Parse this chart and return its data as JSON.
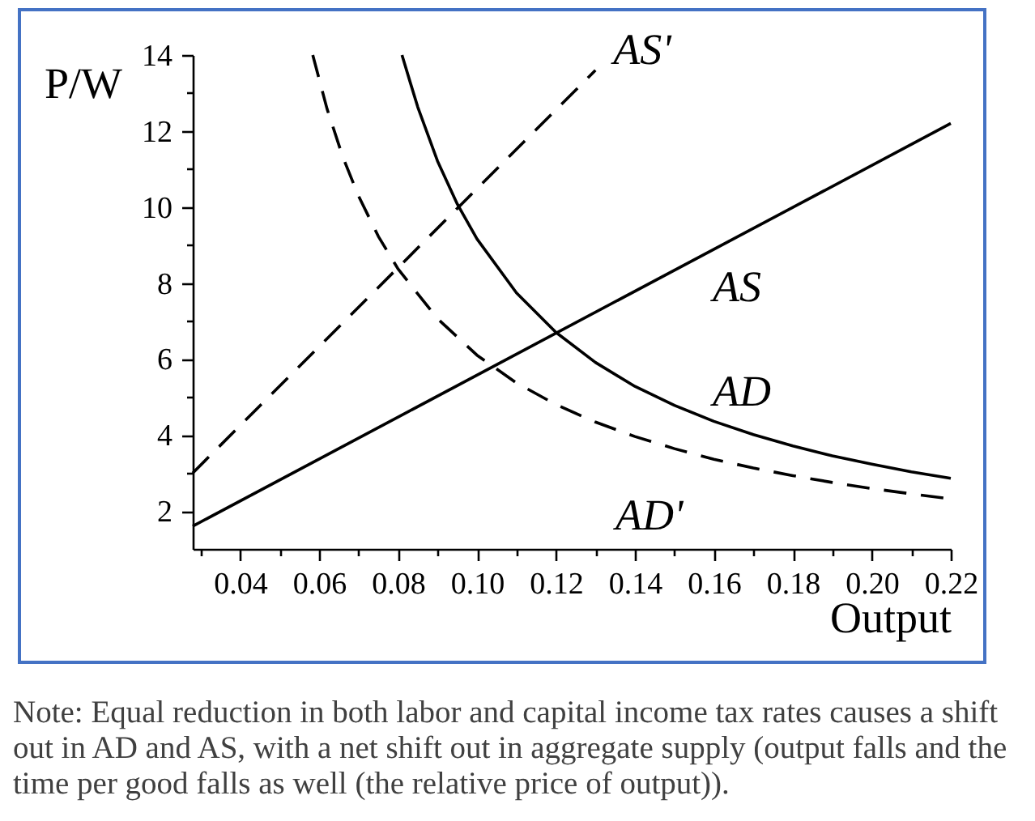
{
  "chart_data": {
    "type": "line",
    "xlabel": "Output",
    "ylabel": "P/W",
    "annotations": [
      "Note: Equal reduction in both labor and capital income tax rates causes a shift out in AD and AS, with a net shift out in aggregate supply (output falls and the time per good falls as well (the relative price of output))."
    ],
    "xlim": [
      0.028,
      0.22
    ],
    "ylim": [
      1,
      14
    ],
    "xticks": [
      {
        "value": 0.03,
        "label": null
      },
      0.04,
      {
        "value": 0.05,
        "label": null
      },
      0.06,
      {
        "value": 0.07,
        "label": null
      },
      0.08,
      {
        "value": 0.09,
        "label": null
      },
      {
        "value": 0.1,
        "label": "0.10"
      },
      {
        "value": 0.11,
        "label": null
      },
      0.12,
      {
        "value": 0.13,
        "label": null
      },
      0.14,
      {
        "value": 0.15,
        "label": null
      },
      0.16,
      {
        "value": 0.17,
        "label": null
      },
      0.18,
      {
        "value": 0.19,
        "label": null
      },
      {
        "value": 0.2,
        "label": "0.20"
      },
      {
        "value": 0.21,
        "label": null
      },
      0.22
    ],
    "yticks": [
      2,
      {
        "value": 3,
        "label": null
      },
      4,
      {
        "value": 5,
        "label": null
      },
      6,
      {
        "value": 7,
        "label": null
      },
      8,
      {
        "value": 9,
        "label": null
      },
      10,
      {
        "value": 11,
        "label": null
      },
      12,
      {
        "value": 13,
        "label": null
      },
      14
    ],
    "series": [
      {
        "name": "AS",
        "color": "#000000",
        "line_style": "solid",
        "x": [
          0.028,
          0.22
        ],
        "values": [
          1.6,
          12.2
        ]
      },
      {
        "name": "AS'",
        "color": "#000000",
        "line_style": "dashed",
        "x": [
          0.028,
          0.13
        ],
        "values": [
          3.0,
          13.6
        ]
      },
      {
        "name": "AD",
        "color": "#000000",
        "line_style": "solid",
        "x": [
          0.081,
          0.083,
          0.085,
          0.09,
          0.095,
          0.1,
          0.11,
          0.12,
          0.13,
          0.14,
          0.15,
          0.16,
          0.17,
          0.18,
          0.19,
          0.2,
          0.21,
          0.22
        ],
        "values": [
          14.0,
          13.31,
          12.63,
          11.21,
          10.08,
          9.16,
          7.74,
          6.7,
          5.91,
          5.28,
          4.78,
          4.36,
          4.01,
          3.71,
          3.45,
          3.23,
          3.03,
          2.86
        ]
      },
      {
        "name": "AD'",
        "color": "#000000",
        "line_style": "dashed",
        "x": [
          0.0584,
          0.062,
          0.066,
          0.07,
          0.075,
          0.08,
          0.09,
          0.1,
          0.11,
          0.12,
          0.13,
          0.14,
          0.15,
          0.16,
          0.17,
          0.18,
          0.19,
          0.2,
          0.21,
          0.22
        ],
        "values": [
          14.0,
          12.59,
          11.32,
          10.29,
          9.23,
          8.37,
          7.06,
          6.1,
          5.37,
          4.8,
          4.34,
          3.96,
          3.64,
          3.36,
          3.13,
          2.93,
          2.75,
          2.59,
          2.45,
          2.32
        ]
      }
    ]
  }
}
